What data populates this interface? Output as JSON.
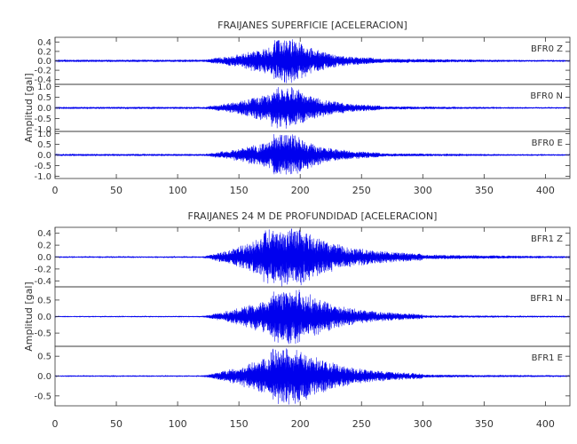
{
  "chart_data": [
    {
      "type": "line",
      "title": "FRAIJANES SUPERFICIE [ACELERACION]",
      "ylabel": "Amplitud [gal]",
      "xlim": [
        0,
        420
      ],
      "x_ticks": [
        "0",
        "50",
        "100",
        "150",
        "200",
        "250",
        "300",
        "350",
        "400"
      ],
      "line_color": "#0000ee",
      "panels": [
        {
          "label": "BFR0   Z",
          "ylim": [
            -0.5,
            0.5
          ],
          "y_ticks": [
            "0.4",
            "0.2",
            "0.0",
            "-0.2",
            "-0.4"
          ],
          "envelope": {
            "noise": 0.025,
            "t1": 122,
            "t2": 178,
            "t3": 196,
            "t4": 260,
            "peak": 0.48,
            "coda": 0.05
          }
        },
        {
          "label": "BFR0   N",
          "ylim": [
            -1.1,
            1.1
          ],
          "y_ticks": [
            "1.0",
            "0.5",
            "0.0",
            "-0.5",
            "-1.0"
          ],
          "envelope": {
            "noise": 0.05,
            "t1": 122,
            "t2": 176,
            "t3": 196,
            "t4": 265,
            "peak": 1.0,
            "coda": 0.08
          }
        },
        {
          "label": "BFR0   E",
          "ylim": [
            -1.1,
            1.1
          ],
          "y_ticks": [
            "1.0",
            "0.5",
            "0.0",
            "-0.5",
            "-1.0"
          ],
          "envelope": {
            "noise": 0.05,
            "t1": 122,
            "t2": 178,
            "t3": 196,
            "t4": 265,
            "peak": 1.0,
            "coda": 0.08
          }
        }
      ]
    },
    {
      "type": "line",
      "title": "FRAIJANES 24 M DE PROFUNDIDAD [ACELERACION]",
      "ylabel": "Amplitud [gal]",
      "xlim": [
        0,
        420
      ],
      "x_ticks": [
        "0",
        "50",
        "100",
        "150",
        "200",
        "250",
        "300",
        "350",
        "400"
      ],
      "line_color": "#0000ee",
      "panels": [
        {
          "label": "BFR1   Z",
          "ylim": [
            -0.5,
            0.5
          ],
          "y_ticks": [
            "0.4",
            "0.2",
            "0.0",
            "-0.2",
            "-0.4"
          ],
          "envelope": {
            "noise": 0.008,
            "t1": 120,
            "t2": 170,
            "t3": 200,
            "t4": 300,
            "peak": 0.5,
            "coda": 0.04
          }
        },
        {
          "label": "BFR1   N",
          "ylim": [
            -0.9,
            0.9
          ],
          "y_ticks": [
            "0.5",
            "0.0",
            "-0.5"
          ],
          "envelope": {
            "noise": 0.008,
            "t1": 120,
            "t2": 176,
            "t3": 200,
            "t4": 300,
            "peak": 0.85,
            "coda": 0.04
          }
        },
        {
          "label": "BFR1   E",
          "ylim": [
            -0.75,
            0.75
          ],
          "y_ticks": [
            "0.5",
            "0.0",
            "-0.5"
          ],
          "envelope": {
            "noise": 0.008,
            "t1": 120,
            "t2": 176,
            "t3": 198,
            "t4": 300,
            "peak": 0.75,
            "coda": 0.04
          }
        }
      ]
    }
  ]
}
